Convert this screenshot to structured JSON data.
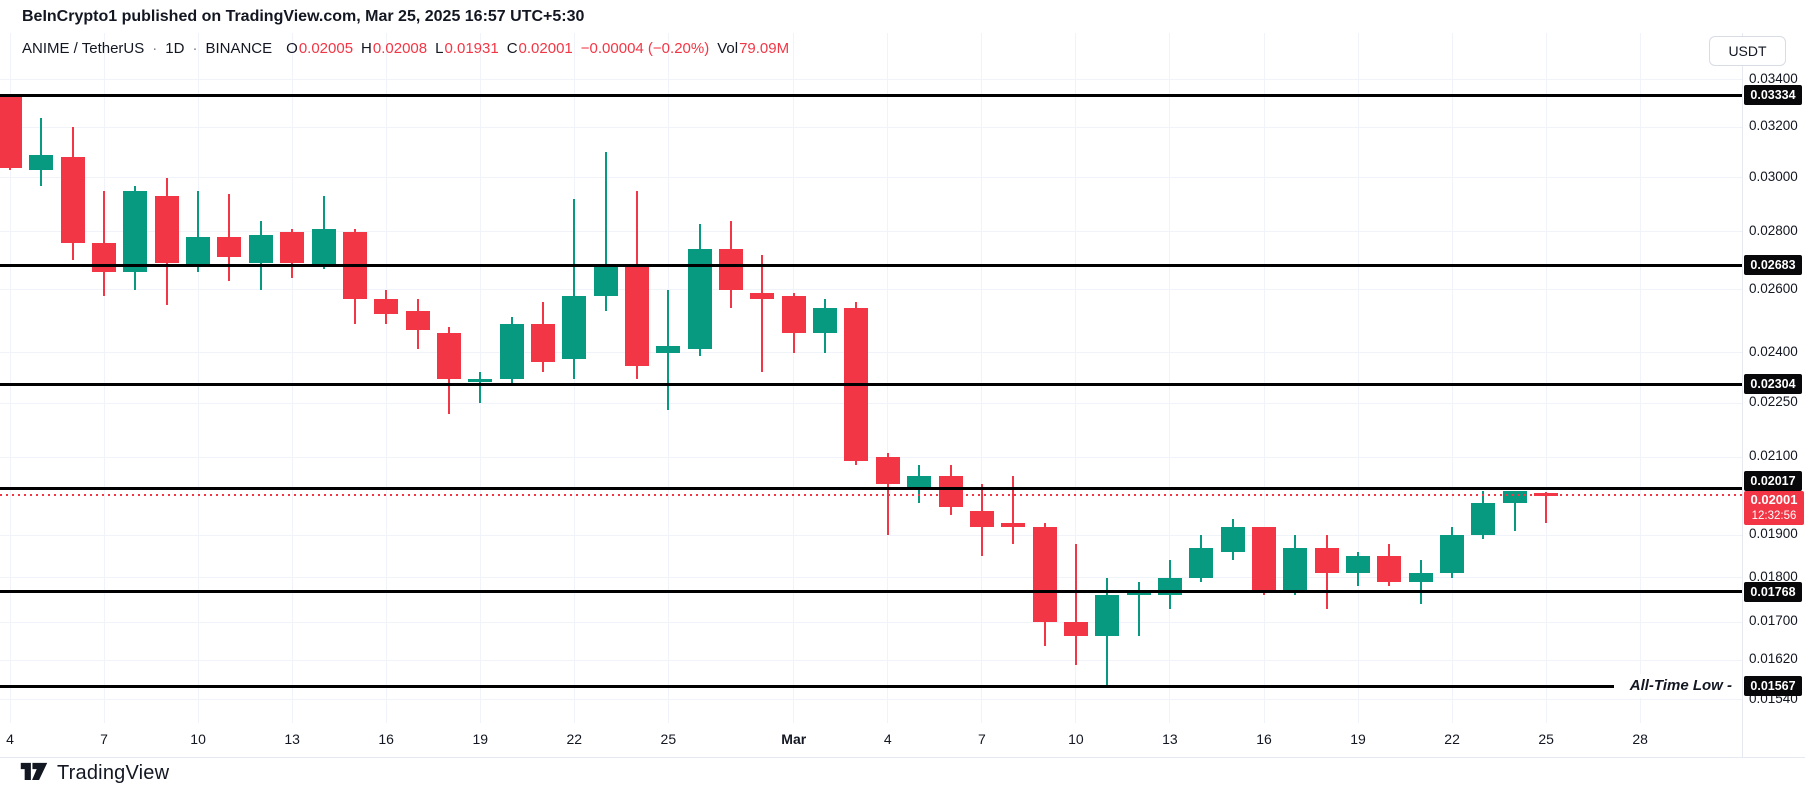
{
  "header": {
    "title": "BeInCrypto1 published on TradingView.com, Mar 25, 2025 16:57 UTC+5:30"
  },
  "legend": {
    "symbol": "ANIME / TetherUS",
    "separator": "·",
    "timeframe": "1D",
    "exchange": "BINANCE",
    "open_label": "O",
    "open": "0.02005",
    "high_label": "H",
    "high": "0.02008",
    "low_label": "L",
    "low": "0.01931",
    "close_label": "C",
    "close": "0.02001",
    "change": "−0.00004 (−0.20%)",
    "volume_label": "Vol",
    "volume": "79.09M"
  },
  "price_axis": {
    "currency_button": "USDT",
    "ticks": [
      {
        "label": "0.03400",
        "value": 0.034
      },
      {
        "label": "0.03200",
        "value": 0.032
      },
      {
        "label": "0.03000",
        "value": 0.03
      },
      {
        "label": "0.02800",
        "value": 0.028
      },
      {
        "label": "0.02600",
        "value": 0.026
      },
      {
        "label": "0.02400",
        "value": 0.024
      },
      {
        "label": "0.02250",
        "value": 0.0225
      },
      {
        "label": "0.02100",
        "value": 0.021
      },
      {
        "label": "0.01900",
        "value": 0.019
      },
      {
        "label": "0.01800",
        "value": 0.018
      },
      {
        "label": "0.01700",
        "value": 0.017
      },
      {
        "label": "0.01620",
        "value": 0.0162
      },
      {
        "label": "0.01540",
        "value": 0.0154
      }
    ]
  },
  "time_axis": {
    "ticks": [
      {
        "label": "4",
        "day": 0
      },
      {
        "label": "7",
        "day": 3
      },
      {
        "label": "10",
        "day": 6
      },
      {
        "label": "13",
        "day": 9
      },
      {
        "label": "16",
        "day": 12
      },
      {
        "label": "19",
        "day": 15
      },
      {
        "label": "22",
        "day": 18
      },
      {
        "label": "25",
        "day": 21
      },
      {
        "label": "Mar",
        "day": 25,
        "bold": true
      },
      {
        "label": "4",
        "day": 28
      },
      {
        "label": "7",
        "day": 31
      },
      {
        "label": "10",
        "day": 34
      },
      {
        "label": "13",
        "day": 37
      },
      {
        "label": "16",
        "day": 40
      },
      {
        "label": "19",
        "day": 43
      },
      {
        "label": "22",
        "day": 46
      },
      {
        "label": "25",
        "day": 49
      },
      {
        "label": "28",
        "day": 52
      }
    ]
  },
  "footer": {
    "logo_text": "TradingView"
  },
  "chart_data": {
    "type": "candlestick",
    "title": "ANIME / TetherUS · 1D · BINANCE",
    "symbol": "ANIME/USDT",
    "interval": "1D",
    "exchange": "BINANCE",
    "price_scale": "log",
    "ylim": [
      0.01495,
      0.0361
    ],
    "colors": {
      "up": "#089981",
      "down": "#f23645",
      "level_line": "#000000",
      "current": "#f23645"
    },
    "dates": [
      "Feb 4",
      "Feb 5",
      "Feb 6",
      "Feb 7",
      "Feb 8",
      "Feb 9",
      "Feb 10",
      "Feb 11",
      "Feb 12",
      "Feb 13",
      "Feb 14",
      "Feb 15",
      "Feb 16",
      "Feb 17",
      "Feb 18",
      "Feb 19",
      "Feb 20",
      "Feb 21",
      "Feb 22",
      "Feb 23",
      "Feb 24",
      "Feb 25",
      "Feb 26",
      "Feb 27",
      "Feb 28",
      "Mar 1",
      "Mar 2",
      "Mar 3",
      "Mar 4",
      "Mar 5",
      "Mar 6",
      "Mar 7",
      "Mar 8",
      "Mar 9",
      "Mar 10",
      "Mar 11",
      "Mar 12",
      "Mar 13",
      "Mar 14",
      "Mar 15",
      "Mar 16",
      "Mar 17",
      "Mar 18",
      "Mar 19",
      "Mar 20",
      "Mar 21",
      "Mar 22",
      "Mar 23",
      "Mar 24",
      "Mar 25"
    ],
    "candles": [
      [
        0.0333,
        0.0334,
        0.0303,
        0.0304
      ],
      [
        0.0303,
        0.0324,
        0.0297,
        0.0309
      ],
      [
        0.0308,
        0.032,
        0.027,
        0.0276
      ],
      [
        0.0276,
        0.0295,
        0.0258,
        0.0266
      ],
      [
        0.0266,
        0.0297,
        0.026,
        0.0295
      ],
      [
        0.0293,
        0.03,
        0.0255,
        0.0269
      ],
      [
        0.0268,
        0.0295,
        0.0266,
        0.0278
      ],
      [
        0.0278,
        0.0294,
        0.0263,
        0.0271
      ],
      [
        0.0269,
        0.0284,
        0.026,
        0.0279
      ],
      [
        0.028,
        0.0281,
        0.0264,
        0.0269
      ],
      [
        0.0268,
        0.0293,
        0.0267,
        0.0281
      ],
      [
        0.028,
        0.0281,
        0.0249,
        0.0257
      ],
      [
        0.0257,
        0.026,
        0.0249,
        0.0252
      ],
      [
        0.0253,
        0.0257,
        0.0241,
        0.0247
      ],
      [
        0.0246,
        0.0248,
        0.0222,
        0.0232
      ],
      [
        0.0231,
        0.0234,
        0.0225,
        0.0232
      ],
      [
        0.0232,
        0.0251,
        0.023,
        0.0249
      ],
      [
        0.0249,
        0.0256,
        0.0234,
        0.0237
      ],
      [
        0.0238,
        0.0292,
        0.0232,
        0.0258
      ],
      [
        0.0258,
        0.031,
        0.0253,
        0.0268
      ],
      [
        0.0268,
        0.0295,
        0.0232,
        0.0236
      ],
      [
        0.024,
        0.026,
        0.0223,
        0.0242
      ],
      [
        0.0241,
        0.0283,
        0.0239,
        0.0274
      ],
      [
        0.0274,
        0.0284,
        0.0254,
        0.026
      ],
      [
        0.0259,
        0.0272,
        0.0234,
        0.0257
      ],
      [
        0.0258,
        0.0259,
        0.024,
        0.0246
      ],
      [
        0.0246,
        0.0257,
        0.024,
        0.0254
      ],
      [
        0.0254,
        0.0256,
        0.0208,
        0.0209
      ],
      [
        0.021,
        0.0211,
        0.019,
        0.0203
      ],
      [
        0.0202,
        0.0208,
        0.0198,
        0.0205
      ],
      [
        0.0205,
        0.0208,
        0.0195,
        0.0197
      ],
      [
        0.0196,
        0.0203,
        0.0185,
        0.0192
      ],
      [
        0.0193,
        0.0205,
        0.0188,
        0.0192
      ],
      [
        0.0192,
        0.0193,
        0.0165,
        0.017
      ],
      [
        0.017,
        0.0188,
        0.0161,
        0.0167
      ],
      [
        0.0167,
        0.018,
        0.0157,
        0.0176
      ],
      [
        0.0176,
        0.0179,
        0.0167,
        0.0177
      ],
      [
        0.0176,
        0.0184,
        0.0173,
        0.018
      ],
      [
        0.018,
        0.019,
        0.0179,
        0.0187
      ],
      [
        0.0186,
        0.0194,
        0.0184,
        0.0192
      ],
      [
        0.0192,
        0.0192,
        0.0176,
        0.0177
      ],
      [
        0.0177,
        0.019,
        0.0176,
        0.0187
      ],
      [
        0.0187,
        0.019,
        0.0173,
        0.0181
      ],
      [
        0.0181,
        0.0186,
        0.0178,
        0.0185
      ],
      [
        0.0185,
        0.0188,
        0.0178,
        0.0179
      ],
      [
        0.0179,
        0.0184,
        0.0174,
        0.0181
      ],
      [
        0.0181,
        0.0192,
        0.018,
        0.019
      ],
      [
        0.019,
        0.0201,
        0.0189,
        0.0198
      ],
      [
        0.0198,
        0.0201,
        0.0191,
        0.0201
      ],
      [
        0.02005,
        0.02008,
        0.01931,
        0.02001
      ]
    ],
    "levels": [
      {
        "price": 0.03334,
        "label": "0.03334"
      },
      {
        "price": 0.02683,
        "label": "0.02683"
      },
      {
        "price": 0.02304,
        "label": "0.02304"
      },
      {
        "price": 0.02017,
        "label": "0.02017"
      },
      {
        "price": 0.01768,
        "label": "0.01768"
      },
      {
        "price": 0.01567,
        "label": "0.01567",
        "annotation": "All-Time Low -"
      }
    ],
    "current_price": {
      "value": 0.02001,
      "label": "0.02001",
      "countdown": "12:32:56"
    }
  }
}
